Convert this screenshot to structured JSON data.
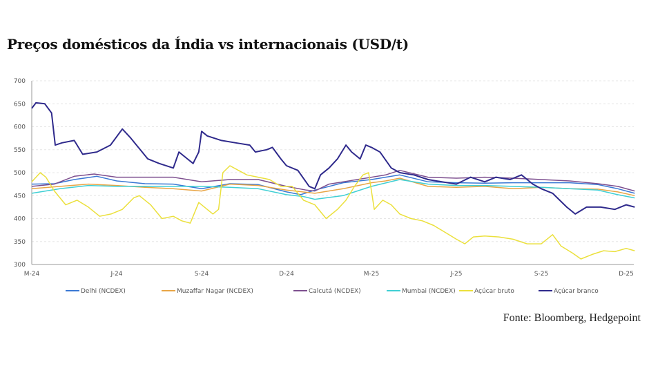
{
  "chart_data": {
    "type": "line",
    "title": "Preços domésticos da Índia vs internacionais (USD/t)",
    "source": "Fonte: Bloomberg, Hedgepoint",
    "xlabel": "",
    "ylabel": "",
    "x_unit": "months since Mar-2024",
    "xlim": [
      0,
      21.3
    ],
    "ylim": [
      300,
      700
    ],
    "yticks": [
      300,
      350,
      400,
      450,
      500,
      550,
      600,
      650,
      700
    ],
    "xticks": [
      {
        "x": 0,
        "label": "M-24"
      },
      {
        "x": 3,
        "label": "J-24"
      },
      {
        "x": 6,
        "label": "S-24"
      },
      {
        "x": 9,
        "label": "D-24"
      },
      {
        "x": 12,
        "label": "M-25"
      },
      {
        "x": 15,
        "label": "J-25"
      },
      {
        "x": 18,
        "label": "S-25"
      },
      {
        "x": 21,
        "label": "D-25"
      }
    ],
    "grid": true,
    "legend_position": "bottom",
    "series": [
      {
        "name": "Delhi (NCDEX)",
        "color": "#3a78d4",
        "points": [
          [
            0,
            475
          ],
          [
            0.8,
            476
          ],
          [
            1.5,
            485
          ],
          [
            2.3,
            492
          ],
          [
            3,
            482
          ],
          [
            4,
            476
          ],
          [
            5,
            475
          ],
          [
            6,
            465
          ],
          [
            7,
            476
          ],
          [
            8,
            474
          ],
          [
            9,
            458
          ],
          [
            9.5,
            452
          ],
          [
            10,
            462
          ],
          [
            11,
            478
          ],
          [
            12,
            485
          ],
          [
            12.5,
            490
          ],
          [
            13,
            495
          ],
          [
            14,
            480
          ],
          [
            15,
            478
          ],
          [
            16,
            477
          ],
          [
            17,
            478
          ],
          [
            18,
            478
          ],
          [
            19,
            478
          ],
          [
            20,
            474
          ],
          [
            20.7,
            465
          ],
          [
            21.3,
            455
          ]
        ]
      },
      {
        "name": "Muzaffar Nagar (NCDEX)",
        "color": "#e9a545",
        "points": [
          [
            0,
            465
          ],
          [
            1,
            470
          ],
          [
            2,
            475
          ],
          [
            3,
            472
          ],
          [
            4,
            468
          ],
          [
            5,
            465
          ],
          [
            6,
            460
          ],
          [
            7,
            475
          ],
          [
            8,
            472
          ],
          [
            9,
            462
          ],
          [
            10,
            455
          ],
          [
            11,
            465
          ],
          [
            12,
            478
          ],
          [
            12.5,
            482
          ],
          [
            13,
            488
          ],
          [
            14,
            470
          ],
          [
            15,
            468
          ],
          [
            16,
            470
          ],
          [
            17,
            465
          ],
          [
            18,
            468
          ],
          [
            19,
            465
          ],
          [
            20,
            464
          ],
          [
            20.7,
            458
          ],
          [
            21.3,
            450
          ]
        ]
      },
      {
        "name": "Calcutá  (NCDEX)",
        "color": "#7d4f8f",
        "points": [
          [
            0,
            470
          ],
          [
            0.8,
            475
          ],
          [
            1.5,
            492
          ],
          [
            2.2,
            497
          ],
          [
            3,
            490
          ],
          [
            4,
            490
          ],
          [
            5,
            490
          ],
          [
            6,
            480
          ],
          [
            7,
            485
          ],
          [
            8,
            485
          ],
          [
            9,
            470
          ],
          [
            9.7,
            462
          ],
          [
            10,
            460
          ],
          [
            10.5,
            475
          ],
          [
            11.5,
            485
          ],
          [
            12.5,
            495
          ],
          [
            13,
            505
          ],
          [
            14,
            490
          ],
          [
            15,
            488
          ],
          [
            16,
            490
          ],
          [
            17,
            488
          ],
          [
            18,
            485
          ],
          [
            19,
            482
          ],
          [
            20,
            476
          ],
          [
            20.7,
            470
          ],
          [
            21.3,
            460
          ]
        ]
      },
      {
        "name": "Mumbai  (NCDEX)",
        "color": "#3fcfd4",
        "points": [
          [
            0,
            455
          ],
          [
            1,
            465
          ],
          [
            2,
            472
          ],
          [
            3,
            470
          ],
          [
            4,
            470
          ],
          [
            5,
            470
          ],
          [
            6,
            470
          ],
          [
            7,
            468
          ],
          [
            8,
            465
          ],
          [
            9,
            452
          ],
          [
            9.6,
            448
          ],
          [
            10,
            442
          ],
          [
            11,
            450
          ],
          [
            12,
            470
          ],
          [
            13,
            485
          ],
          [
            14,
            475
          ],
          [
            15,
            472
          ],
          [
            16,
            472
          ],
          [
            17,
            470
          ],
          [
            18,
            468
          ],
          [
            19,
            465
          ],
          [
            20,
            462
          ],
          [
            20.7,
            452
          ],
          [
            21.3,
            445
          ]
        ]
      },
      {
        "name": "Açúcar bruto",
        "color": "#ebe03c",
        "points": [
          [
            0,
            480
          ],
          [
            0.3,
            500
          ],
          [
            0.5,
            490
          ],
          [
            0.8,
            460
          ],
          [
            1.2,
            430
          ],
          [
            1.6,
            440
          ],
          [
            2,
            425
          ],
          [
            2.4,
            405
          ],
          [
            2.8,
            410
          ],
          [
            3.2,
            420
          ],
          [
            3.6,
            445
          ],
          [
            3.8,
            450
          ],
          [
            4.2,
            430
          ],
          [
            4.6,
            400
          ],
          [
            5,
            405
          ],
          [
            5.3,
            395
          ],
          [
            5.6,
            390
          ],
          [
            5.9,
            435
          ],
          [
            6.1,
            425
          ],
          [
            6.4,
            410
          ],
          [
            6.6,
            420
          ],
          [
            6.75,
            500
          ],
          [
            7,
            515
          ],
          [
            7.3,
            505
          ],
          [
            7.6,
            495
          ],
          [
            8,
            490
          ],
          [
            8.4,
            485
          ],
          [
            8.8,
            470
          ],
          [
            9.2,
            470
          ],
          [
            9.6,
            440
          ],
          [
            10,
            430
          ],
          [
            10.4,
            400
          ],
          [
            10.8,
            420
          ],
          [
            11.1,
            440
          ],
          [
            11.4,
            470
          ],
          [
            11.7,
            495
          ],
          [
            11.9,
            500
          ],
          [
            12.1,
            420
          ],
          [
            12.4,
            440
          ],
          [
            12.7,
            430
          ],
          [
            13,
            410
          ],
          [
            13.4,
            400
          ],
          [
            13.8,
            395
          ],
          [
            14.2,
            385
          ],
          [
            14.6,
            370
          ],
          [
            15,
            355
          ],
          [
            15.3,
            345
          ],
          [
            15.6,
            360
          ],
          [
            16,
            362
          ],
          [
            16.5,
            360
          ],
          [
            17,
            355
          ],
          [
            17.5,
            345
          ],
          [
            18,
            345
          ],
          [
            18.4,
            365
          ],
          [
            18.7,
            340
          ],
          [
            19.1,
            325
          ],
          [
            19.4,
            312
          ],
          [
            19.8,
            322
          ],
          [
            20.2,
            330
          ],
          [
            20.6,
            328
          ],
          [
            21,
            335
          ],
          [
            21.3,
            330
          ]
        ]
      },
      {
        "name": "Açúcar branco",
        "color": "#2f2a8c",
        "points": [
          [
            0,
            640
          ],
          [
            0.15,
            652
          ],
          [
            0.46,
            650
          ],
          [
            0.7,
            630
          ],
          [
            0.83,
            560
          ],
          [
            1.07,
            565
          ],
          [
            1.5,
            570
          ],
          [
            1.8,
            540
          ],
          [
            2.3,
            545
          ],
          [
            2.78,
            560
          ],
          [
            3.2,
            595
          ],
          [
            3.5,
            575
          ],
          [
            3.9,
            545
          ],
          [
            4.1,
            530
          ],
          [
            4.5,
            520
          ],
          [
            5,
            510
          ],
          [
            5.2,
            545
          ],
          [
            5.5,
            530
          ],
          [
            5.7,
            520
          ],
          [
            5.9,
            545
          ],
          [
            6,
            590
          ],
          [
            6.2,
            580
          ],
          [
            6.7,
            570
          ],
          [
            7.2,
            565
          ],
          [
            7.7,
            560
          ],
          [
            7.9,
            545
          ],
          [
            8.3,
            550
          ],
          [
            8.5,
            555
          ],
          [
            8.8,
            530
          ],
          [
            9,
            515
          ],
          [
            9.4,
            505
          ],
          [
            9.8,
            470
          ],
          [
            10,
            465
          ],
          [
            10.2,
            495
          ],
          [
            10.5,
            510
          ],
          [
            10.8,
            530
          ],
          [
            11.1,
            560
          ],
          [
            11.3,
            545
          ],
          [
            11.6,
            530
          ],
          [
            11.8,
            560
          ],
          [
            12,
            555
          ],
          [
            12.3,
            545
          ],
          [
            12.7,
            510
          ],
          [
            13,
            500
          ],
          [
            13.5,
            495
          ],
          [
            14,
            485
          ],
          [
            14.5,
            480
          ],
          [
            15,
            475
          ],
          [
            15.5,
            490
          ],
          [
            16,
            480
          ],
          [
            16.4,
            490
          ],
          [
            16.9,
            485
          ],
          [
            17.3,
            495
          ],
          [
            17.7,
            475
          ],
          [
            18,
            465
          ],
          [
            18.4,
            455
          ],
          [
            18.9,
            425
          ],
          [
            19.2,
            410
          ],
          [
            19.6,
            425
          ],
          [
            20.1,
            425
          ],
          [
            20.6,
            420
          ],
          [
            21,
            430
          ],
          [
            21.3,
            425
          ]
        ]
      }
    ]
  }
}
